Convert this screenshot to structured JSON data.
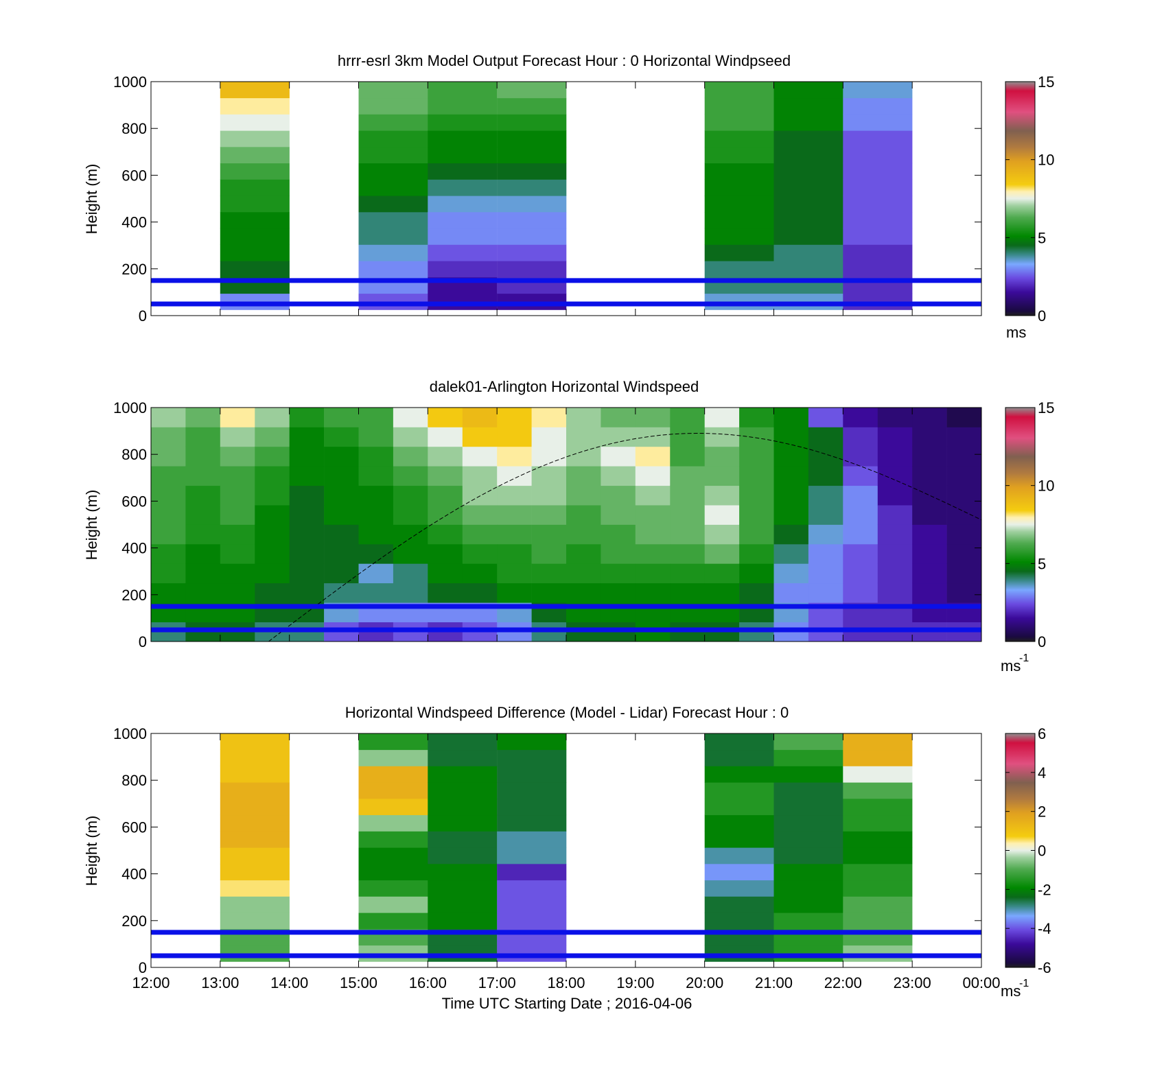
{
  "chart_data": [
    {
      "type": "heatmap",
      "title": "hrrr-esrl 3km Model Output   Forecast Hour : 0 Horizontal Windpseed",
      "ylabel": "Height (m)",
      "ylim": [
        0,
        1000
      ],
      "yticks": [
        "0",
        "200",
        "400",
        "600",
        "800",
        "1000"
      ],
      "xlim": [
        "12:00",
        "00:00"
      ],
      "colorbar": {
        "ticks": [
          "0",
          "5",
          "10",
          "15"
        ],
        "unit": "ms",
        "range": [
          0,
          15
        ]
      },
      "reference_lines_m": [
        50,
        150
      ],
      "hourly_columns": [
        {
          "start": "12:00",
          "values": null
        },
        {
          "start": "13:00",
          "values": [
            3,
            4.5,
            4.5,
            5,
            5,
            5,
            5.5,
            5.5,
            6,
            6.5,
            7,
            7.5,
            8,
            9
          ]
        },
        {
          "start": "14:00",
          "values": null
        },
        {
          "start": "15:00",
          "values": [
            2.5,
            3,
            3,
            3.5,
            4,
            4,
            4.5,
            5,
            5,
            5.5,
            5.5,
            6,
            6.5,
            6.5
          ]
        },
        {
          "start": "16:00",
          "values": [
            1.5,
            1.5,
            2,
            2.5,
            3,
            3,
            3.5,
            4,
            4.5,
            5,
            5,
            5.5,
            6,
            6
          ]
        },
        {
          "start": "17:00",
          "values": [
            1.5,
            2,
            2,
            2.5,
            3,
            3,
            3.5,
            4,
            4.5,
            5,
            5,
            5.5,
            6,
            6.5
          ]
        },
        {
          "start": "18:00",
          "values": null
        },
        {
          "start": "19:00",
          "values": null
        },
        {
          "start": "20:00",
          "values": [
            3.5,
            4,
            4,
            4.5,
            5,
            5,
            5,
            5,
            5,
            5.5,
            5.5,
            6,
            6,
            6
          ]
        },
        {
          "start": "21:00",
          "values": [
            3.5,
            4,
            4,
            4,
            4.5,
            4.5,
            4.5,
            4.5,
            4.5,
            4.5,
            4.5,
            5,
            5,
            5
          ]
        },
        {
          "start": "22:00",
          "values": [
            2,
            2,
            2,
            2,
            2.5,
            2.5,
            2.5,
            2.5,
            2.5,
            2.5,
            2.5,
            3,
            3,
            3.5
          ]
        },
        {
          "start": "23:00",
          "values": null
        }
      ]
    },
    {
      "type": "heatmap",
      "title": "dalek01-Arlington  Horizontal Windspeed",
      "ylabel": "Height (m)",
      "ylim": [
        0,
        1000
      ],
      "yticks": [
        "0",
        "200",
        "400",
        "600",
        "800",
        "1000"
      ],
      "xlim": [
        "12:00",
        "00:00"
      ],
      "colorbar": {
        "ticks": [
          "0",
          "5",
          "10",
          "15"
        ],
        "unit": "ms",
        "unit_exponent": "-1",
        "range": [
          0,
          15
        ]
      },
      "reference_lines_m": [
        50,
        150
      ],
      "dashed_curve": {
        "x_hours": [
          13.7,
          19.9,
          24
        ],
        "y_m": [
          0,
          890,
          520
        ]
      },
      "half_hour_columns": [
        {
          "start": "12:00",
          "values": [
            4,
            5,
            5,
            5.5,
            5.5,
            6,
            6,
            6,
            6,
            6.5,
            6.5,
            7
          ]
        },
        {
          "start": "12:30",
          "values": [
            4.5,
            5,
            5,
            5,
            5,
            5.5,
            5.5,
            5.5,
            6,
            6,
            6,
            6.5
          ]
        },
        {
          "start": "13:00",
          "values": [
            4.5,
            5,
            5,
            5,
            5.5,
            5.5,
            6,
            6,
            6,
            6.5,
            7,
            8
          ]
        },
        {
          "start": "13:30",
          "values": [
            4,
            4.5,
            4.5,
            5,
            5,
            5,
            5,
            5.5,
            5.5,
            6,
            6.5,
            7
          ]
        },
        {
          "start": "14:00",
          "values": [
            4,
            4.5,
            4.5,
            4.5,
            4.5,
            4.5,
            4.5,
            4.5,
            5,
            5,
            5,
            5.5
          ]
        },
        {
          "start": "14:30",
          "values": [
            2.5,
            3.5,
            4,
            4.5,
            4.5,
            4.5,
            5,
            5,
            5,
            5,
            5.5,
            6
          ]
        },
        {
          "start": "15:00",
          "values": [
            2,
            3,
            4,
            3.5,
            4.5,
            5,
            5,
            5,
            5.5,
            5.5,
            6,
            6
          ]
        },
        {
          "start": "15:30",
          "values": [
            2.5,
            3,
            4,
            4,
            5,
            5,
            5.5,
            5.5,
            6,
            6.5,
            7,
            7.5
          ]
        },
        {
          "start": "16:00",
          "values": [
            2,
            3,
            4.5,
            5,
            5,
            5.5,
            6,
            6,
            6.5,
            7,
            7.5,
            8.5
          ]
        },
        {
          "start": "16:30",
          "values": [
            2.5,
            3,
            4.5,
            5,
            5.5,
            6,
            6.5,
            7,
            7,
            7.5,
            8.5,
            9
          ]
        },
        {
          "start": "17:00",
          "values": [
            3,
            3.5,
            5,
            5.5,
            5.5,
            6,
            6.5,
            7,
            7.5,
            8,
            8.5,
            8.5
          ]
        },
        {
          "start": "17:30",
          "values": [
            4,
            4.5,
            5,
            5.5,
            6,
            6,
            6.5,
            7,
            7,
            7.5,
            7.5,
            8
          ]
        },
        {
          "start": "18:00",
          "values": [
            4.5,
            5,
            5,
            5.5,
            5.5,
            6,
            6,
            6.5,
            6.5,
            7,
            7,
            7
          ]
        },
        {
          "start": "18:30",
          "values": [
            4.5,
            5,
            5,
            5.5,
            6,
            6,
            6.5,
            6.5,
            7,
            7.5,
            7,
            6.5
          ]
        },
        {
          "start": "19:00",
          "values": [
            5,
            5,
            5,
            5.5,
            6,
            6.5,
            6.5,
            7,
            7.5,
            8,
            7,
            6.5
          ]
        },
        {
          "start": "19:30",
          "values": [
            4.5,
            5,
            5,
            5.5,
            6,
            6.5,
            6.5,
            6.5,
            6.5,
            6,
            6,
            6
          ]
        },
        {
          "start": "20:00",
          "values": [
            4.5,
            5,
            5,
            5.5,
            6.5,
            7,
            7.5,
            7,
            6.5,
            6.5,
            7,
            7.5
          ]
        },
        {
          "start": "20:30",
          "values": [
            4,
            4.5,
            4.5,
            5,
            5.5,
            6,
            6,
            6,
            6,
            6,
            6,
            5.5
          ]
        },
        {
          "start": "21:00",
          "values": [
            3,
            3.5,
            3,
            3.5,
            4,
            4.5,
            5,
            5,
            5,
            5,
            5,
            5
          ]
        },
        {
          "start": "21:30",
          "values": [
            2.5,
            2.5,
            3,
            3,
            3,
            3.5,
            4,
            4,
            4.5,
            4.5,
            4.5,
            2.5
          ]
        },
        {
          "start": "22:00",
          "values": [
            2,
            2,
            2.5,
            2.5,
            2.5,
            3,
            3,
            3,
            2.5,
            2,
            2,
            1.5
          ]
        },
        {
          "start": "22:30",
          "values": [
            2,
            2,
            2,
            2,
            2,
            2,
            2,
            1.5,
            1.5,
            1.5,
            1.5,
            1
          ]
        },
        {
          "start": "23:00",
          "values": [
            2,
            1.5,
            1.5,
            1.5,
            1.5,
            1.5,
            1,
            1,
            1,
            1,
            1,
            1
          ]
        },
        {
          "start": "23:30",
          "values": [
            2,
            1.5,
            1,
            1,
            1,
            1,
            1,
            1,
            1,
            1,
            1,
            0.5
          ]
        }
      ]
    },
    {
      "type": "heatmap",
      "title": "Horizontal Windspeed Difference (Model - Lidar) Forecast Hour : 0",
      "xlabel": "Time UTC  Starting Date ; 2016-04-06",
      "ylabel": "Height (m)",
      "ylim": [
        0,
        1000
      ],
      "yticks": [
        "0",
        "200",
        "400",
        "600",
        "800",
        "1000"
      ],
      "xticks": [
        "12:00",
        "13:00",
        "14:00",
        "15:00",
        "16:00",
        "17:00",
        "18:00",
        "19:00",
        "20:00",
        "21:00",
        "22:00",
        "23:00",
        "00:00"
      ],
      "colorbar": {
        "ticks": [
          "-6",
          "-4",
          "-2",
          "0",
          "2",
          "4",
          "6"
        ],
        "unit": "ms",
        "unit_exponent": "-1",
        "range": [
          -6,
          6
        ]
      },
      "reference_lines_m": [
        50,
        150
      ],
      "hourly_columns": [
        {
          "start": "12:00",
          "values": null
        },
        {
          "start": "13:00",
          "values": [
            -1,
            -1,
            -0.5,
            -0.5,
            0.5,
            1,
            1,
            1.5,
            1.5,
            1.5,
            1.5,
            1,
            1,
            1
          ]
        },
        {
          "start": "14:00",
          "values": null
        },
        {
          "start": "15:00",
          "values": [
            -0.5,
            -1,
            -1.5,
            -0.5,
            -1.5,
            -2,
            -2,
            -1.5,
            -0.5,
            1,
            1.5,
            1.5,
            -0.5,
            -1.5
          ]
        },
        {
          "start": "16:00",
          "values": [
            -2.5,
            -2.5,
            -2,
            -2,
            -2,
            -2,
            -2.5,
            -2.5,
            -2,
            -2,
            -2,
            -2,
            -2.5,
            -2.5
          ]
        },
        {
          "start": "17:00",
          "values": [
            -4,
            -4,
            -4,
            -4,
            -4,
            -4.5,
            -3,
            -3,
            -2.5,
            -2.5,
            -2.5,
            -2.5,
            -2.5,
            -2
          ]
        },
        {
          "start": "18:00",
          "values": null
        },
        {
          "start": "19:00",
          "values": null
        },
        {
          "start": "20:00",
          "values": [
            -2.5,
            -2.5,
            -2.5,
            -2.5,
            -3,
            -3.5,
            -3,
            -2,
            -2,
            -1.5,
            -1.5,
            -2,
            -2.5,
            -2.5
          ]
        },
        {
          "start": "21:00",
          "values": [
            -1.5,
            -1.5,
            -1.5,
            -2,
            -2,
            -2,
            -2.5,
            -2.5,
            -2.5,
            -2.5,
            -2.5,
            -2,
            -1.5,
            -1
          ]
        },
        {
          "start": "22:00",
          "values": [
            -0.5,
            -1,
            -1,
            -1,
            -1.5,
            -1.5,
            -2,
            -2,
            -1.5,
            -1.5,
            -1,
            0,
            1.5,
            1.5
          ]
        },
        {
          "start": "23:00",
          "values": null
        }
      ]
    }
  ]
}
